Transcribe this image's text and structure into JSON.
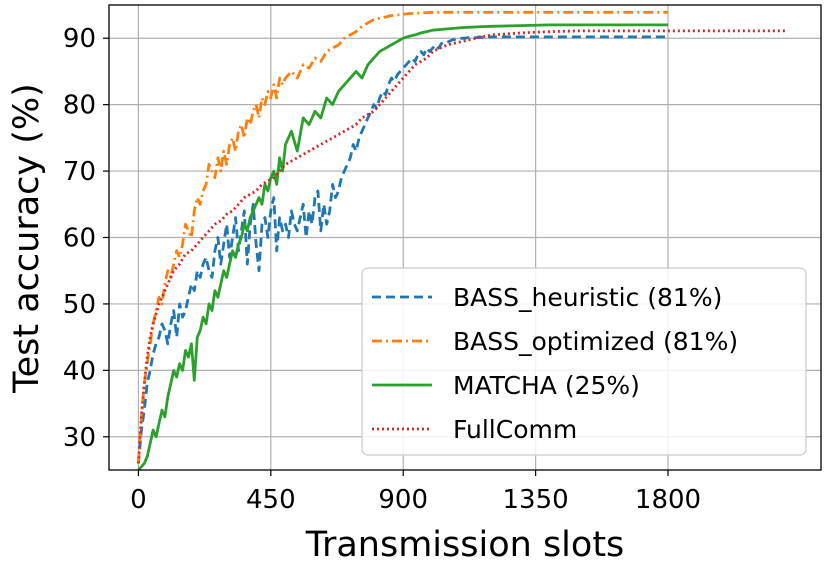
{
  "chart_data": {
    "type": "line",
    "xlabel": "Transmission slots",
    "ylabel": "Test accuracy (%)",
    "xlim": [
      -100,
      2320
    ],
    "ylim": [
      25,
      95
    ],
    "xticks": [
      "0",
      "450",
      "900",
      "1350",
      "1800"
    ],
    "yticks": [
      "30",
      "40",
      "50",
      "60",
      "70",
      "80",
      "90"
    ],
    "grid": true,
    "legend_position": "lower-right",
    "series": [
      {
        "name": "BASS_heuristic (81%)",
        "color": "#1f77b4",
        "style": "dashed",
        "x": [
          0,
          10,
          20,
          30,
          40,
          50,
          60,
          70,
          80,
          90,
          100,
          110,
          120,
          130,
          140,
          150,
          160,
          170,
          180,
          190,
          200,
          210,
          220,
          230,
          240,
          250,
          260,
          270,
          280,
          290,
          300,
          310,
          320,
          330,
          340,
          350,
          360,
          370,
          380,
          390,
          400,
          410,
          420,
          430,
          440,
          450,
          460,
          470,
          480,
          490,
          500,
          510,
          520,
          530,
          540,
          550,
          560,
          570,
          580,
          590,
          600,
          610,
          620,
          630,
          640,
          650,
          660,
          670,
          680,
          690,
          700,
          710,
          720,
          730,
          740,
          750,
          760,
          770,
          780,
          790,
          800,
          810,
          820,
          830,
          840,
          850,
          860,
          870,
          880,
          890,
          900,
          910,
          920,
          930,
          940,
          950,
          960,
          970,
          980,
          990,
          1000,
          1010,
          1020,
          1030,
          1040,
          1050,
          1060,
          1070,
          1080,
          1090,
          1100,
          1110,
          1120,
          1130,
          1140,
          1150,
          1160,
          1170,
          1180,
          1190,
          1200,
          1250,
          1300,
          1400,
          1500,
          1600,
          1700,
          1800
        ],
        "values": [
          26,
          31,
          34,
          38,
          40,
          42.5,
          44,
          45,
          47,
          46,
          44,
          47,
          49,
          45,
          50,
          48,
          49,
          51,
          53,
          52,
          55,
          54,
          56,
          57,
          55,
          54,
          58,
          60,
          56,
          59,
          62,
          57,
          60,
          63,
          58,
          61,
          64,
          56,
          62,
          65,
          59,
          55,
          62,
          63,
          60,
          64,
          66,
          58,
          63,
          61,
          62,
          60,
          64,
          62,
          61,
          63,
          65,
          60,
          64,
          62,
          66,
          67,
          61,
          65,
          62,
          64,
          68,
          66,
          67,
          69,
          70,
          71,
          72,
          74,
          73,
          75,
          76,
          77,
          78,
          79,
          80,
          79.5,
          81,
          82,
          81.5,
          83,
          84,
          83.5,
          84.5,
          85,
          85.5,
          86,
          86.5,
          87,
          86.5,
          87.5,
          88,
          87.5,
          88.5,
          88,
          88.5,
          89,
          88.5,
          89.2,
          89.5,
          89.4,
          89.6,
          89.8,
          89.7,
          89.9,
          90,
          90,
          90.1,
          90,
          90.1,
          90.1,
          90.2,
          90.1,
          90.2,
          90.2,
          90.2,
          90.2,
          90.2,
          90.2,
          90.2,
          90.2,
          90.2,
          90.2
        ]
      },
      {
        "name": "BASS_optimized (81%)",
        "color": "#ff7f0e",
        "style": "dashdot",
        "x": [
          0,
          10,
          20,
          30,
          40,
          50,
          60,
          70,
          80,
          90,
          100,
          110,
          120,
          130,
          140,
          150,
          160,
          170,
          180,
          190,
          200,
          210,
          220,
          230,
          240,
          250,
          260,
          270,
          280,
          290,
          300,
          310,
          320,
          330,
          340,
          350,
          360,
          370,
          380,
          390,
          400,
          410,
          420,
          430,
          440,
          450,
          460,
          470,
          480,
          490,
          500,
          520,
          540,
          560,
          580,
          600,
          620,
          640,
          660,
          680,
          700,
          720,
          740,
          760,
          780,
          800,
          820,
          840,
          860,
          880,
          900,
          920,
          940,
          960,
          980,
          1000,
          1050,
          1100,
          1200,
          1300,
          1400,
          1500,
          1600,
          1700,
          1800
        ],
        "values": [
          26,
          33,
          38,
          41,
          44,
          47,
          49,
          51,
          50,
          53,
          55,
          54,
          56,
          58,
          57,
          59,
          62,
          61,
          60,
          64,
          66,
          65,
          67,
          68,
          71,
          70,
          69,
          72,
          70,
          73,
          71,
          74,
          75,
          73,
          76,
          77,
          75,
          78,
          77,
          79,
          80,
          78,
          81,
          80,
          82,
          81,
          83,
          81,
          84,
          83,
          84,
          85,
          84,
          86,
          85.5,
          87,
          86.5,
          88,
          88.5,
          89,
          90,
          90.5,
          91,
          91.8,
          92.3,
          92.8,
          93,
          93.2,
          93.4,
          93.5,
          93.6,
          93.7,
          93.75,
          93.8,
          93.85,
          93.9,
          93.9,
          93.9,
          93.9,
          93.9,
          93.9,
          93.9,
          93.9,
          93.9,
          93.9
        ]
      },
      {
        "name": "MATCHA (25%)",
        "color": "#2ca02c",
        "style": "solid",
        "x": [
          0,
          10,
          20,
          30,
          40,
          50,
          60,
          70,
          80,
          90,
          100,
          110,
          120,
          130,
          140,
          150,
          160,
          170,
          180,
          190,
          200,
          210,
          220,
          230,
          240,
          250,
          260,
          270,
          280,
          290,
          300,
          310,
          320,
          330,
          340,
          350,
          360,
          370,
          380,
          390,
          400,
          410,
          420,
          430,
          440,
          450,
          460,
          470,
          480,
          490,
          500,
          520,
          540,
          560,
          580,
          600,
          620,
          640,
          660,
          680,
          700,
          720,
          740,
          760,
          780,
          800,
          820,
          840,
          860,
          880,
          900,
          920,
          940,
          960,
          980,
          1000,
          1050,
          1100,
          1150,
          1200,
          1300,
          1400,
          1500,
          1600,
          1700,
          1800
        ],
        "values": [
          25,
          25.5,
          26,
          27,
          29,
          31,
          30,
          32,
          34,
          33,
          36,
          38,
          40,
          39,
          41,
          40,
          43,
          42,
          44,
          38.5,
          45,
          46,
          48,
          47,
          50,
          49,
          52,
          51,
          53,
          55,
          54,
          56,
          58,
          57,
          59,
          60,
          62,
          61,
          63,
          64,
          65,
          66,
          65,
          68,
          67,
          69,
          70,
          68,
          72,
          70,
          74,
          76,
          73,
          78,
          77,
          79,
          78,
          81,
          80,
          82,
          83,
          84,
          85,
          84,
          86,
          87,
          88,
          88.5,
          89,
          89.5,
          90,
          90.3,
          90.5,
          90.8,
          91,
          91.2,
          91.4,
          91.6,
          91.7,
          91.8,
          91.9,
          92,
          92,
          92,
          92,
          92
        ]
      },
      {
        "name": "FullComm",
        "color": "#d62728",
        "style": "dotted",
        "x": [
          0,
          10,
          20,
          30,
          40,
          50,
          60,
          70,
          80,
          90,
          100,
          120,
          140,
          160,
          180,
          200,
          220,
          240,
          260,
          280,
          300,
          320,
          340,
          360,
          380,
          400,
          420,
          440,
          460,
          480,
          500,
          520,
          540,
          560,
          580,
          600,
          620,
          640,
          660,
          680,
          700,
          720,
          740,
          760,
          780,
          800,
          820,
          840,
          860,
          880,
          900,
          920,
          940,
          960,
          980,
          1000,
          1050,
          1100,
          1150,
          1200,
          1300,
          1400,
          1500,
          1600,
          1700,
          1800,
          1900,
          2000,
          2100,
          2200
        ],
        "values": [
          26,
          33,
          38,
          42,
          45,
          47,
          48.5,
          50,
          51,
          52,
          53,
          55,
          56,
          57.5,
          58,
          59,
          60,
          61,
          62,
          62.5,
          63.5,
          64,
          65,
          66,
          66.5,
          67,
          68,
          68.5,
          69,
          70,
          71,
          71.5,
          72,
          72.5,
          73,
          73.5,
          74,
          74.5,
          75,
          75.5,
          76,
          76.5,
          77,
          78,
          78.5,
          79,
          80,
          81,
          82,
          83,
          84,
          85,
          86,
          86.5,
          87,
          88,
          89,
          89.5,
          90,
          90.5,
          90.8,
          91,
          91.1,
          91.1,
          91.1,
          91.1,
          91.1,
          91.1,
          91.1,
          91.1
        ]
      }
    ]
  }
}
